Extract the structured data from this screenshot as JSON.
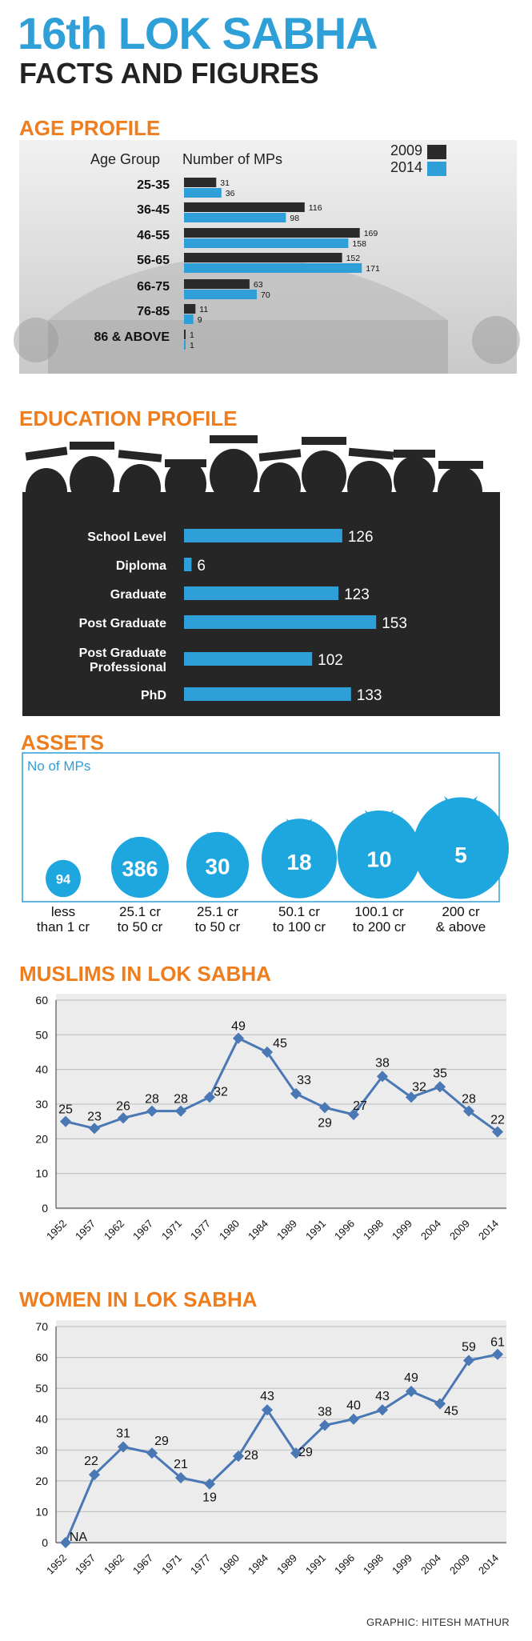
{
  "header": {
    "title": "16th LOK SABHA",
    "subtitle": "FACTS AND FIGURES"
  },
  "credit": "GRAPHIC: HITESH MATHUR",
  "colors": {
    "blue": "#2f9fd8",
    "dark": "#2b2b2b",
    "orange": "#ee7d1e",
    "line": "#4a78b5"
  },
  "chart_data": [
    {
      "type": "bar",
      "title": "AGE PROFILE",
      "col_header_group": "Age Group",
      "col_header_value": "Number of MPs",
      "categories": [
        "25-35",
        "36-45",
        "46-55",
        "56-65",
        "66-75",
        "76-85",
        "86 & ABOVE"
      ],
      "series": [
        {
          "name": "2009",
          "values": [
            31,
            116,
            169,
            152,
            63,
            11,
            1
          ],
          "color": "#2b2b2b"
        },
        {
          "name": "2014",
          "values": [
            36,
            98,
            158,
            171,
            70,
            9,
            1
          ],
          "color": "#2f9fd8"
        }
      ],
      "legend": "top-right"
    },
    {
      "type": "bar",
      "title": "EDUCATION PROFILE",
      "categories": [
        "School Level",
        "Diploma",
        "Graduate",
        "Post Graduate",
        "Post Graduate Professional",
        "PhD"
      ],
      "values": [
        126,
        6,
        123,
        153,
        102,
        133
      ]
    },
    {
      "type": "bar",
      "title": "ASSETS",
      "ylabel": "No of MPs",
      "categories": [
        "less than 1 cr",
        "25.1 cr to 50 cr",
        "25.1 cr to 50 cr",
        "50.1 cr to 100 cr",
        "100.1 cr to 200 cr",
        "200 cr & above"
      ],
      "category_lines": [
        [
          "less",
          "than 1 cr"
        ],
        [
          "25.1 cr",
          "to 50 cr"
        ],
        [
          "25.1 cr",
          "to 50 cr"
        ],
        [
          "50.1 cr",
          "to 100 cr"
        ],
        [
          "100.1 cr",
          "to 200 cr"
        ],
        [
          "200 cr",
          "& above"
        ]
      ],
      "values": [
        94,
        386,
        30,
        18,
        10,
        5
      ]
    },
    {
      "type": "line",
      "title": "MUSLIMS IN LOK SABHA",
      "x": [
        "1952",
        "1957",
        "1962",
        "1967",
        "1971",
        "1977",
        "1980",
        "1984",
        "1989",
        "1991",
        "1996",
        "1998",
        "1999",
        "2004",
        "2009",
        "2014"
      ],
      "values": [
        25,
        23,
        26,
        28,
        28,
        32,
        49,
        45,
        33,
        29,
        27,
        38,
        32,
        35,
        28,
        22
      ],
      "ylim": [
        0,
        60
      ],
      "yticks": [
        0,
        10,
        20,
        30,
        40,
        50,
        60
      ],
      "grid": true
    },
    {
      "type": "line",
      "title": "WOMEN IN LOK SABHA",
      "x": [
        "1952",
        "1957",
        "1962",
        "1967",
        "1971",
        "1977",
        "1980",
        "1984",
        "1989",
        "1991",
        "1996",
        "1998",
        "1999",
        "2004",
        "2009",
        "2014"
      ],
      "values": [
        0,
        22,
        31,
        29,
        21,
        19,
        28,
        43,
        29,
        38,
        40,
        43,
        49,
        45,
        59,
        61
      ],
      "point_labels": [
        "NA",
        "22",
        "31",
        "29",
        "21",
        "19",
        "28",
        "43",
        "29",
        "38",
        "40",
        "43",
        "49",
        "45",
        "59",
        "61"
      ],
      "ylim": [
        0,
        70
      ],
      "yticks": [
        0,
        10,
        20,
        30,
        40,
        50,
        60,
        70
      ],
      "grid": true
    }
  ]
}
